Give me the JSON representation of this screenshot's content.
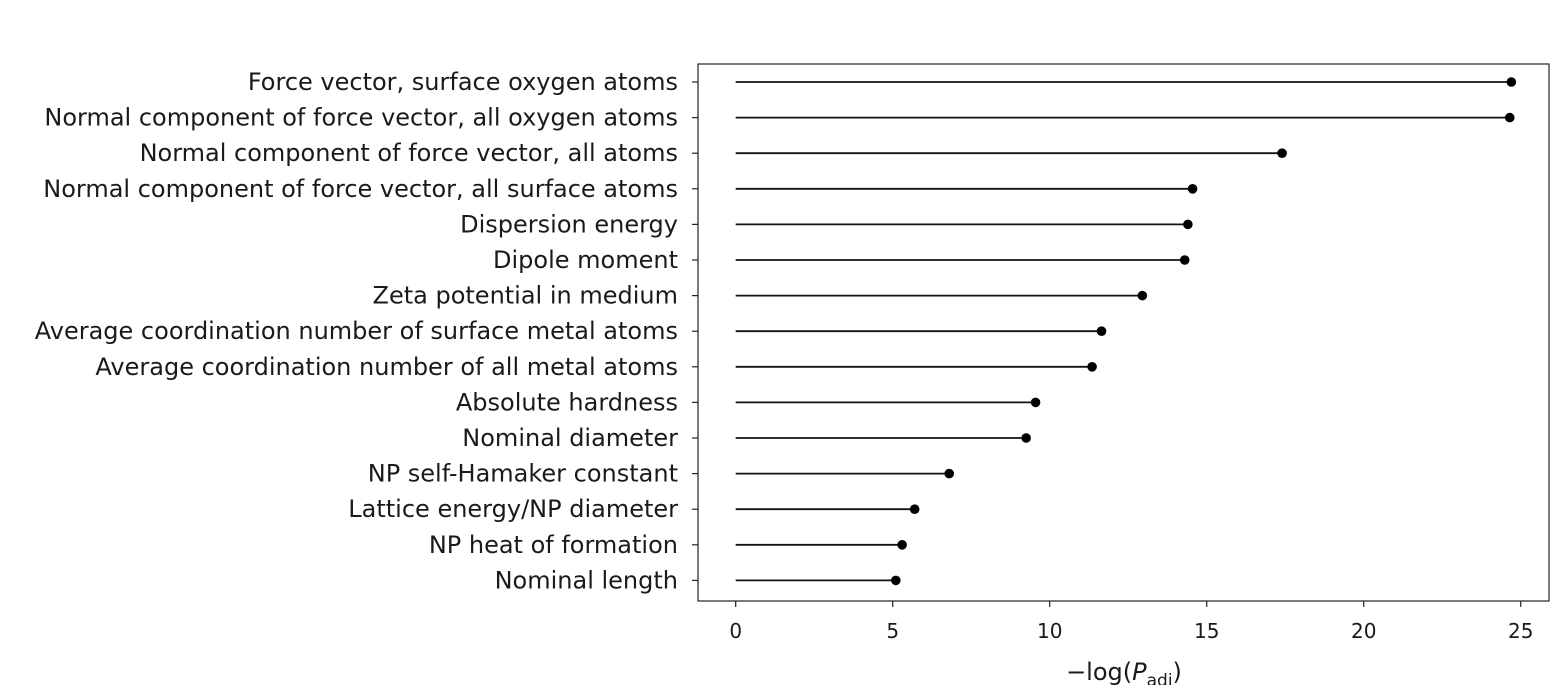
{
  "chart_data": {
    "type": "lollipop",
    "orientation": "horizontal",
    "categories": [
      "Force vector, surface oxygen atoms",
      "Normal component of force vector, all oxygen atoms",
      "Normal component of force vector, all atoms",
      "Normal component of force vector, all surface atoms",
      "Dispersion energy",
      "Dipole moment",
      "Zeta potential in medium",
      "Average coordination number of surface metal atoms",
      "Average coordination number of all metal atoms",
      "Absolute hardness",
      "Nominal diameter",
      "NP self-Hamaker constant",
      "Lattice energy/NP diameter",
      "NP heat of formation",
      "Nominal length"
    ],
    "values": [
      24.7,
      24.65,
      17.4,
      14.55,
      14.4,
      14.3,
      12.95,
      11.65,
      11.35,
      9.55,
      9.25,
      6.8,
      5.7,
      5.3,
      5.1
    ],
    "xlabel_main": "−log(",
    "xlabel_var": "P",
    "xlabel_sub": "adj",
    "xlabel_close": ")",
    "xticks": [
      0,
      5,
      10,
      15,
      20,
      25
    ],
    "xlim": [
      -1.2,
      25.9
    ],
    "colors": {
      "line": "#111111",
      "marker": "#000000",
      "frame": "#222222"
    }
  }
}
